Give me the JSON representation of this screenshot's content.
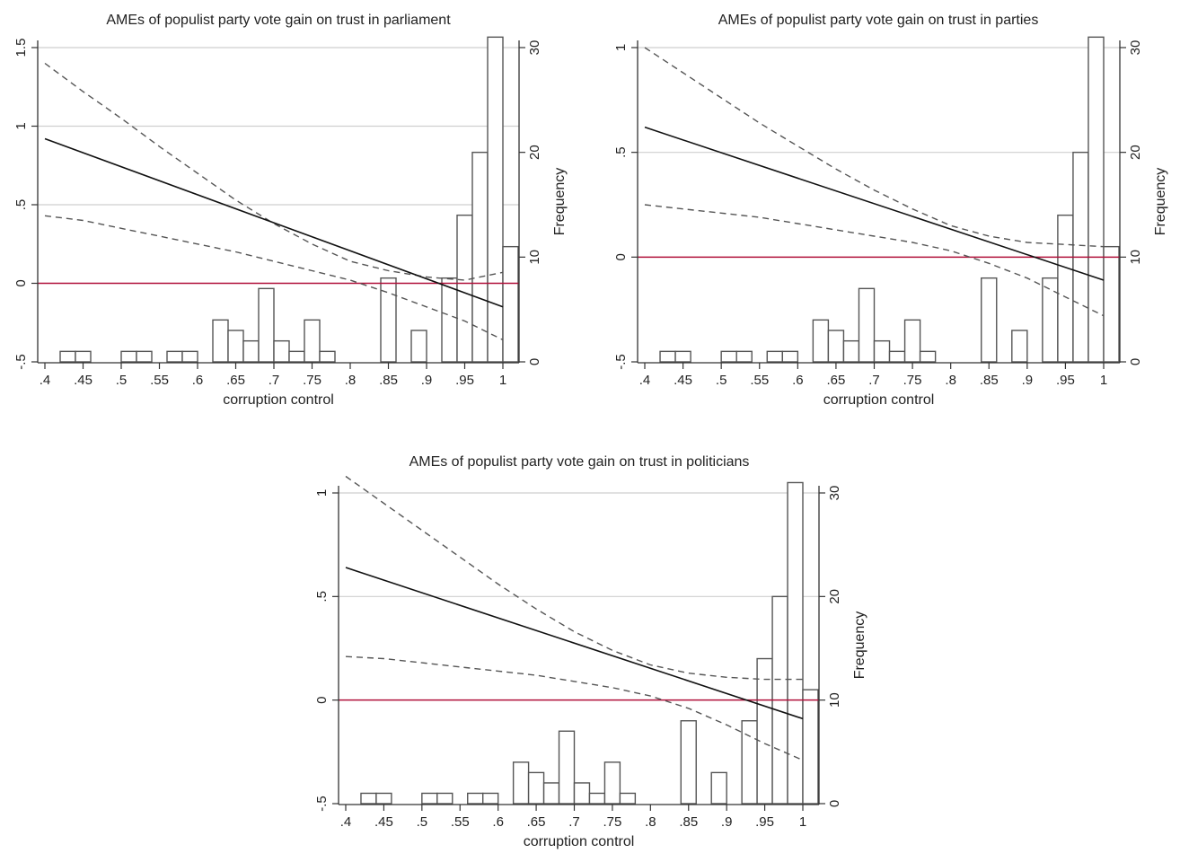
{
  "chart_data": [
    {
      "type": "line",
      "title": "AMEs of populist party vote gain on trust in parliament",
      "xlabel": "corruption control",
      "ylabel": "",
      "y2label": "Frequency",
      "xlim": [
        0.4,
        1.0
      ],
      "ylim": [
        -0.5,
        1.5
      ],
      "y2lim": [
        0,
        30
      ],
      "x_ticks": [
        ".4",
        ".45",
        ".5",
        ".55",
        ".6",
        ".65",
        ".7",
        ".75",
        ".8",
        ".85",
        ".9",
        ".95",
        "1"
      ],
      "y_ticks": [
        {
          "v": -0.5,
          "label": "-.5"
        },
        {
          "v": 0,
          "label": "0"
        },
        {
          "v": 0.5,
          "label": ".5"
        },
        {
          "v": 1,
          "label": "1"
        },
        {
          "v": 1.5,
          "label": "1.5"
        }
      ],
      "y2_ticks": [
        {
          "v": 0,
          "label": "0"
        },
        {
          "v": 10,
          "label": "10"
        },
        {
          "v": 20,
          "label": "20"
        },
        {
          "v": 30,
          "label": "30"
        }
      ],
      "gridlines_y": [
        0.5,
        1,
        1.5
      ],
      "reference_line": 0,
      "ame_x": [
        0.4,
        1.0
      ],
      "ame_y": [
        0.92,
        -0.15
      ],
      "ci_x": [
        0.4,
        0.45,
        0.5,
        0.55,
        0.6,
        0.65,
        0.7,
        0.75,
        0.8,
        0.85,
        0.9,
        0.95,
        1.0
      ],
      "ci_upper": [
        1.4,
        1.22,
        1.05,
        0.87,
        0.7,
        0.53,
        0.38,
        0.25,
        0.14,
        0.08,
        0.04,
        0.02,
        0.07
      ],
      "ci_lower": [
        0.43,
        0.4,
        0.35,
        0.3,
        0.25,
        0.2,
        0.14,
        0.08,
        0.02,
        -0.06,
        -0.15,
        -0.24,
        -0.36
      ],
      "histogram": {
        "bin_start": 0.4,
        "bin_width": 0.02,
        "counts": [
          0,
          1,
          1,
          0,
          0,
          1,
          1,
          0,
          1,
          1,
          0,
          4,
          3,
          2,
          7,
          2,
          1,
          4,
          1,
          0,
          0,
          0,
          8,
          0,
          3,
          0,
          8,
          14,
          20,
          31,
          11
        ]
      }
    },
    {
      "type": "line",
      "title": "AMEs of populist party vote gain on trust in parties",
      "xlabel": "corruption control",
      "ylabel": "",
      "y2label": "Frequency",
      "xlim": [
        0.4,
        1.0
      ],
      "ylim": [
        -0.5,
        1.0
      ],
      "y2lim": [
        0,
        30
      ],
      "x_ticks": [
        ".4",
        ".45",
        ".5",
        ".55",
        ".6",
        ".65",
        ".7",
        ".75",
        ".8",
        ".85",
        ".9",
        ".95",
        "1"
      ],
      "y_ticks": [
        {
          "v": -0.5,
          "label": "-.5"
        },
        {
          "v": 0,
          "label": "0"
        },
        {
          "v": 0.5,
          "label": ".5"
        },
        {
          "v": 1,
          "label": "1"
        }
      ],
      "y2_ticks": [
        {
          "v": 0,
          "label": "0"
        },
        {
          "v": 10,
          "label": "10"
        },
        {
          "v": 20,
          "label": "20"
        },
        {
          "v": 30,
          "label": "30"
        }
      ],
      "gridlines_y": [
        0.5,
        1
      ],
      "reference_line": 0,
      "ame_x": [
        0.4,
        1.0
      ],
      "ame_y": [
        0.62,
        -0.11
      ],
      "ci_x": [
        0.4,
        0.45,
        0.5,
        0.55,
        0.6,
        0.65,
        0.7,
        0.75,
        0.8,
        0.85,
        0.9,
        0.95,
        1.0
      ],
      "ci_upper": [
        1.0,
        0.88,
        0.76,
        0.64,
        0.53,
        0.42,
        0.32,
        0.23,
        0.15,
        0.1,
        0.07,
        0.06,
        0.05
      ],
      "ci_lower": [
        0.25,
        0.23,
        0.21,
        0.19,
        0.16,
        0.13,
        0.1,
        0.07,
        0.03,
        -0.03,
        -0.1,
        -0.19,
        -0.28
      ],
      "histogram": {
        "bin_start": 0.4,
        "bin_width": 0.02,
        "counts": [
          0,
          1,
          1,
          0,
          0,
          1,
          1,
          0,
          1,
          1,
          0,
          4,
          3,
          2,
          7,
          2,
          1,
          4,
          1,
          0,
          0,
          0,
          8,
          0,
          3,
          0,
          8,
          14,
          20,
          31,
          11
        ]
      }
    },
    {
      "type": "line",
      "title": "AMEs of populist party vote gain on trust in politicians",
      "xlabel": "corruption control",
      "ylabel": "",
      "y2label": "Frequency",
      "xlim": [
        0.4,
        1.0
      ],
      "ylim": [
        -0.5,
        1.0
      ],
      "y2lim": [
        0,
        30
      ],
      "x_ticks": [
        ".4",
        ".45",
        ".5",
        ".55",
        ".6",
        ".65",
        ".7",
        ".75",
        ".8",
        ".85",
        ".9",
        ".95",
        "1"
      ],
      "y_ticks": [
        {
          "v": -0.5,
          "label": "-.5"
        },
        {
          "v": 0,
          "label": "0"
        },
        {
          "v": 0.5,
          "label": ".5"
        },
        {
          "v": 1,
          "label": "1"
        }
      ],
      "y2_ticks": [
        {
          "v": 0,
          "label": "0"
        },
        {
          "v": 10,
          "label": "10"
        },
        {
          "v": 20,
          "label": "20"
        },
        {
          "v": 30,
          "label": "30"
        }
      ],
      "gridlines_y": [
        0.5,
        1
      ],
      "reference_line": 0,
      "ame_x": [
        0.4,
        1.0
      ],
      "ame_y": [
        0.64,
        -0.09
      ],
      "ci_x": [
        0.4,
        0.45,
        0.5,
        0.55,
        0.6,
        0.65,
        0.7,
        0.75,
        0.8,
        0.85,
        0.9,
        0.95,
        1.0
      ],
      "ci_upper": [
        1.08,
        0.95,
        0.82,
        0.69,
        0.56,
        0.44,
        0.33,
        0.24,
        0.17,
        0.13,
        0.11,
        0.1,
        0.1
      ],
      "ci_lower": [
        0.21,
        0.2,
        0.18,
        0.16,
        0.14,
        0.12,
        0.09,
        0.06,
        0.02,
        -0.04,
        -0.12,
        -0.21,
        -0.29
      ],
      "histogram": {
        "bin_start": 0.4,
        "bin_width": 0.02,
        "counts": [
          0,
          1,
          1,
          0,
          0,
          1,
          1,
          0,
          1,
          1,
          0,
          4,
          3,
          2,
          7,
          2,
          1,
          4,
          1,
          0,
          0,
          0,
          8,
          0,
          3,
          0,
          8,
          14,
          20,
          31,
          11
        ]
      }
    }
  ],
  "colors": {
    "ame_line": "#111111",
    "ci_line": "#555555",
    "reference_line": "#b0103a",
    "gridline": "#cfcfcf",
    "bar_stroke": "#555555",
    "axis": "#333333"
  }
}
